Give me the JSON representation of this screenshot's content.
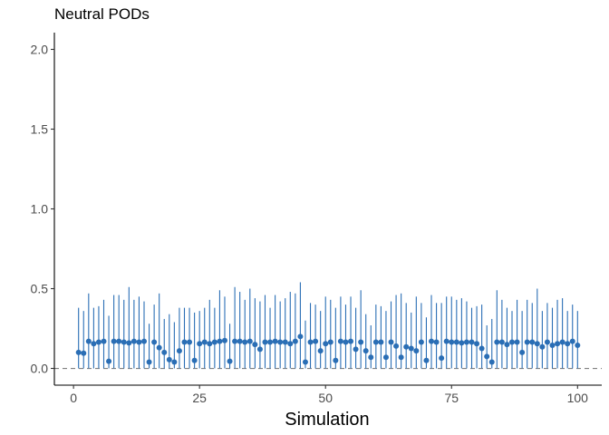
{
  "chart_data": {
    "type": "scatter",
    "title": "Neutral PODs",
    "xlabel": "Simulation",
    "ylabel": "",
    "xlim": [
      -3.8,
      104.8
    ],
    "ylim": [
      -0.105,
      2.105
    ],
    "x_ticks": [
      0,
      25,
      50,
      75,
      100
    ],
    "x_tick_labels": [
      "0",
      "25",
      "50",
      "75",
      "100"
    ],
    "y_ticks": [
      0.0,
      0.5,
      1.0,
      1.5,
      2.0
    ],
    "y_tick_labels": [
      "0.0",
      "0.5",
      "1.0",
      "1.5",
      "2.0"
    ],
    "reference_line": 0,
    "grid": false,
    "colors": {
      "point": "#2a6eb5",
      "interval": "#2a6eb5",
      "reference": "#808080"
    },
    "series": [
      {
        "x": [
          1,
          2,
          3,
          4,
          5,
          6,
          7,
          8,
          9,
          10,
          11,
          12,
          13,
          14,
          15,
          16,
          17,
          18,
          19,
          20,
          21,
          22,
          23,
          24,
          25,
          26,
          27,
          28,
          29,
          30,
          31,
          32,
          33,
          34,
          35,
          36,
          37,
          38,
          39,
          40,
          41,
          42,
          43,
          44,
          45,
          46,
          47,
          48,
          49,
          50,
          51,
          52,
          53,
          54,
          55,
          56,
          57,
          58,
          59,
          60,
          61,
          62,
          63,
          64,
          65,
          66,
          67,
          68,
          69,
          70,
          71,
          72,
          73,
          74,
          75,
          76,
          77,
          78,
          79,
          80,
          81,
          82,
          83,
          84,
          85,
          86,
          87,
          88,
          89,
          90,
          91,
          92,
          93,
          94,
          95,
          96,
          97,
          98,
          99,
          100
        ],
        "y": [
          0.1,
          0.095,
          0.17,
          0.155,
          0.165,
          0.17,
          0.045,
          0.17,
          0.17,
          0.165,
          0.16,
          0.17,
          0.165,
          0.17,
          0.04,
          0.165,
          0.13,
          0.1,
          0.055,
          0.04,
          0.11,
          0.165,
          0.165,
          0.05,
          0.155,
          0.165,
          0.155,
          0.165,
          0.17,
          0.175,
          0.045,
          0.17,
          0.17,
          0.165,
          0.17,
          0.15,
          0.12,
          0.165,
          0.165,
          0.17,
          0.165,
          0.165,
          0.155,
          0.17,
          0.2,
          0.04,
          0.165,
          0.17,
          0.11,
          0.155,
          0.165,
          0.05,
          0.17,
          0.165,
          0.17,
          0.12,
          0.165,
          0.11,
          0.07,
          0.165,
          0.165,
          0.07,
          0.165,
          0.14,
          0.07,
          0.135,
          0.125,
          0.11,
          0.165,
          0.05,
          0.17,
          0.165,
          0.065,
          0.17,
          0.165,
          0.165,
          0.16,
          0.165,
          0.165,
          0.155,
          0.125,
          0.075,
          0.04,
          0.165,
          0.165,
          0.15,
          0.165,
          0.165,
          0.1,
          0.165,
          0.165,
          0.155,
          0.135,
          0.165,
          0.145,
          0.155,
          0.165,
          0.155,
          0.17,
          0.145
        ],
        "upper": [
          0.38,
          0.36,
          0.47,
          0.38,
          0.39,
          0.43,
          0.33,
          0.46,
          0.46,
          0.43,
          0.51,
          0.43,
          0.45,
          0.42,
          0.28,
          0.4,
          0.47,
          0.31,
          0.34,
          0.29,
          0.38,
          0.38,
          0.38,
          0.35,
          0.36,
          0.38,
          0.43,
          0.38,
          0.49,
          0.45,
          0.28,
          0.51,
          0.48,
          0.43,
          0.5,
          0.44,
          0.42,
          0.46,
          0.38,
          0.46,
          0.42,
          0.44,
          0.48,
          0.47,
          0.54,
          0.3,
          0.41,
          0.4,
          0.36,
          0.45,
          0.43,
          0.38,
          0.45,
          0.4,
          0.45,
          0.38,
          0.49,
          0.34,
          0.27,
          0.4,
          0.39,
          0.36,
          0.42,
          0.46,
          0.47,
          0.41,
          0.35,
          0.45,
          0.41,
          0.32,
          0.46,
          0.41,
          0.41,
          0.45,
          0.45,
          0.43,
          0.44,
          0.42,
          0.38,
          0.39,
          0.4,
          0.27,
          0.31,
          0.49,
          0.43,
          0.38,
          0.36,
          0.43,
          0.36,
          0.43,
          0.41,
          0.5,
          0.36,
          0.41,
          0.38,
          0.43,
          0.44,
          0.36,
          0.4,
          0.36
        ]
      }
    ]
  }
}
